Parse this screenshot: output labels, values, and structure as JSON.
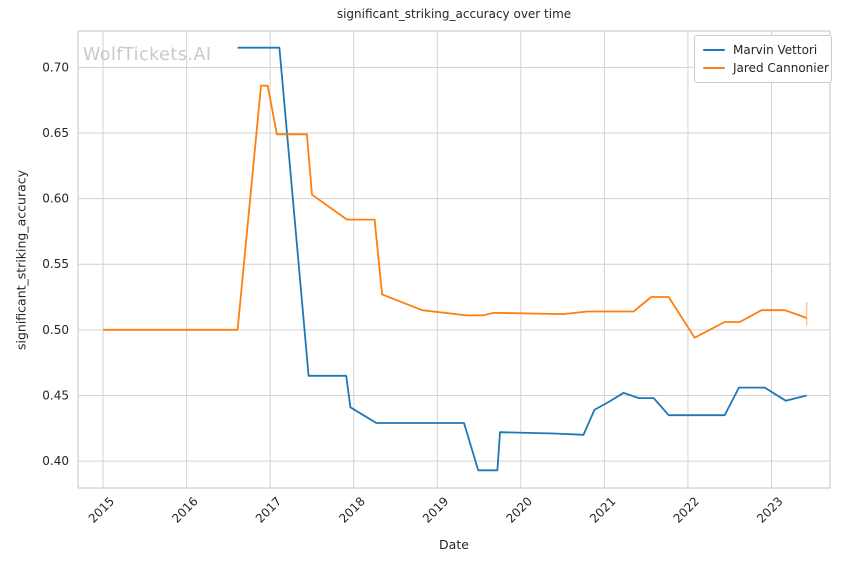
{
  "watermark": "WolfTickets.AI",
  "chart_data": {
    "type": "line",
    "title": "significant_striking_accuracy over time",
    "xlabel": "Date",
    "ylabel": "significant_striking_accuracy",
    "xlim": [
      2014.7,
      2023.7
    ],
    "ylim": [
      0.3795,
      0.7277
    ],
    "x_ticks": [
      2015,
      2016,
      2017,
      2018,
      2019,
      2020,
      2021,
      2022,
      2023
    ],
    "y_ticks": [
      0.4,
      0.45,
      0.5,
      0.55,
      0.6,
      0.65,
      0.7
    ],
    "grid": true,
    "legend_position": "upper right",
    "series": [
      {
        "name": "Marvin Vettori",
        "color": "#1f77b4",
        "points": [
          [
            2016.61,
            0.715
          ],
          [
            2017.11,
            0.715
          ],
          [
            2017.46,
            0.465
          ],
          [
            2017.91,
            0.465
          ],
          [
            2017.96,
            0.441
          ],
          [
            2018.27,
            0.429
          ],
          [
            2019.32,
            0.429
          ],
          [
            2019.49,
            0.393
          ],
          [
            2019.72,
            0.393
          ],
          [
            2019.75,
            0.422
          ],
          [
            2020.4,
            0.421
          ],
          [
            2020.75,
            0.42
          ],
          [
            2020.88,
            0.439
          ],
          [
            2021.05,
            0.445
          ],
          [
            2021.23,
            0.452
          ],
          [
            2021.41,
            0.448
          ],
          [
            2021.59,
            0.448
          ],
          [
            2021.77,
            0.435
          ],
          [
            2022.44,
            0.435
          ],
          [
            2022.61,
            0.456
          ],
          [
            2022.92,
            0.456
          ],
          [
            2023.17,
            0.446
          ],
          [
            2023.42,
            0.45
          ]
        ]
      },
      {
        "name": "Jared Cannonier",
        "color": "#ff7f0e",
        "points": [
          [
            2015.0,
            0.5
          ],
          [
            2016.61,
            0.5
          ],
          [
            2016.89,
            0.686
          ],
          [
            2016.97,
            0.686
          ],
          [
            2017.08,
            0.649
          ],
          [
            2017.44,
            0.649
          ],
          [
            2017.5,
            0.603
          ],
          [
            2017.92,
            0.584
          ],
          [
            2018.25,
            0.584
          ],
          [
            2018.34,
            0.527
          ],
          [
            2018.82,
            0.515
          ],
          [
            2019.35,
            0.511
          ],
          [
            2019.55,
            0.511
          ],
          [
            2019.68,
            0.513
          ],
          [
            2020.5,
            0.512
          ],
          [
            2020.8,
            0.514
          ],
          [
            2021.35,
            0.514
          ],
          [
            2021.56,
            0.525
          ],
          [
            2021.77,
            0.525
          ],
          [
            2022.08,
            0.494
          ],
          [
            2022.44,
            0.506
          ],
          [
            2022.62,
            0.506
          ],
          [
            2022.88,
            0.515
          ],
          [
            2023.16,
            0.515
          ],
          [
            2023.42,
            0.509
          ]
        ],
        "end_cap": {
          "x": 2023.42,
          "y_low": 0.503,
          "y_high": 0.521
        }
      }
    ]
  }
}
